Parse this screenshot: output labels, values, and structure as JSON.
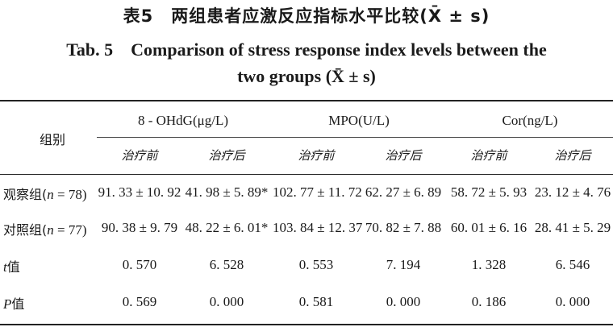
{
  "title_cn": "表5　两组患者应激反应指标水平比较(X̄ ± s)",
  "title_en_line1": "Tab. 5　Comparison of stress response index levels between the",
  "title_en_line2": "two groups (X̄ ± s)",
  "header": {
    "group_label": "组别",
    "col_groups": [
      "8 - OHdG(μg/L)",
      "MPO(U/L)",
      "Cor(ng/L)"
    ],
    "sub_before": "治疗前",
    "sub_after": "治疗后"
  },
  "rows": [
    {
      "label_prefix": "观察组(",
      "label_n": "n",
      "label_suffix": " = 78)",
      "values": [
        "91. 33 ± 10. 92",
        "41. 98 ± 5. 89*",
        "102. 77 ± 11. 72",
        "62. 27 ± 6. 89",
        "58. 72 ± 5. 93",
        "23. 12 ± 4. 76"
      ]
    },
    {
      "label_prefix": "对照组(",
      "label_n": "n",
      "label_suffix": " = 77)",
      "values": [
        "90. 38 ± 9. 79",
        "48. 22 ± 6. 01*",
        "103. 84 ± 12. 37",
        "70. 82 ± 7. 88",
        "60. 01 ± 6. 16",
        "28. 41 ± 5. 29"
      ]
    },
    {
      "label_prefix": "",
      "label_n": "t",
      "label_suffix": "值",
      "values": [
        "0. 570",
        "6. 528",
        "0. 553",
        "7. 194",
        "1. 328",
        "6. 546"
      ]
    },
    {
      "label_prefix": "",
      "label_n": "P",
      "label_suffix": "值",
      "values": [
        "0. 569",
        "0. 000",
        "0. 581",
        "0. 000",
        "0. 186",
        "0. 000"
      ]
    }
  ]
}
